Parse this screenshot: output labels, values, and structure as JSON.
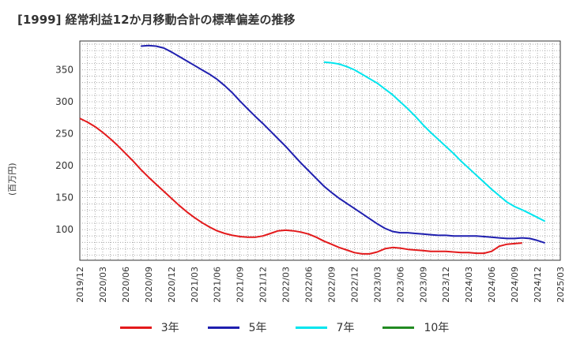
{
  "title": "[1999]  経常利益12か月移動合計の標準偏差の推移",
  "chart_data": {
    "type": "line",
    "title": "[1999]  経常利益12か月移動合計の標準偏差の推移",
    "ylabel": "(百万円)",
    "xlabel": "",
    "ylim": [
      52,
      395
    ],
    "yticks": [
      100,
      150,
      200,
      250,
      300,
      350
    ],
    "xticks": [
      "2019/12",
      "2020/03",
      "2020/06",
      "2020/09",
      "2020/12",
      "2021/03",
      "2021/06",
      "2021/09",
      "2021/12",
      "2022/03",
      "2022/06",
      "2022/09",
      "2022/12",
      "2023/03",
      "2023/06",
      "2023/09",
      "2023/12",
      "2024/03",
      "2024/06",
      "2024/09",
      "2024/12",
      "2025/03"
    ],
    "grid": true,
    "legend_position": "bottom",
    "series": [
      {
        "name": "3年",
        "color": "#e31a1c",
        "values": [
          274,
          268,
          261,
          252,
          242,
          231,
          219,
          207,
          194,
          182,
          171,
          160,
          149,
          138,
          128,
          119,
          111,
          104,
          98,
          94,
          91,
          89,
          88,
          88,
          90,
          94,
          98,
          99,
          98,
          96,
          93,
          88,
          82,
          77,
          72,
          68,
          64,
          62,
          62,
          65,
          70,
          72,
          71,
          69,
          68,
          67,
          66,
          66,
          66,
          65,
          64,
          64,
          63,
          63,
          66,
          74,
          77,
          78,
          79
        ]
      },
      {
        "name": "5年",
        "color": "#1f1faf",
        "values": [
          null,
          null,
          null,
          null,
          null,
          null,
          null,
          null,
          387,
          388,
          387,
          384,
          378,
          371,
          364,
          357,
          350,
          343,
          335,
          325,
          314,
          301,
          289,
          277,
          266,
          254,
          242,
          230,
          217,
          204,
          192,
          180,
          168,
          158,
          149,
          141,
          133,
          125,
          117,
          109,
          102,
          97,
          95,
          95,
          94,
          93,
          92,
          91,
          91,
          90,
          90,
          90,
          90,
          89,
          88,
          87,
          86,
          86,
          87,
          86,
          83,
          79
        ]
      },
      {
        "name": "7年",
        "color": "#00e5ee",
        "values": [
          null,
          null,
          null,
          null,
          null,
          null,
          null,
          null,
          null,
          null,
          null,
          null,
          null,
          null,
          null,
          null,
          null,
          null,
          null,
          null,
          null,
          null,
          null,
          null,
          null,
          null,
          null,
          null,
          null,
          null,
          null,
          null,
          362,
          361,
          359,
          355,
          350,
          343,
          336,
          329,
          320,
          311,
          300,
          289,
          277,
          264,
          252,
          241,
          230,
          219,
          207,
          196,
          185,
          174,
          163,
          153,
          143,
          136,
          131,
          125,
          119,
          113
        ]
      },
      {
        "name": "10年",
        "color": "#228b22",
        "values": []
      }
    ]
  }
}
